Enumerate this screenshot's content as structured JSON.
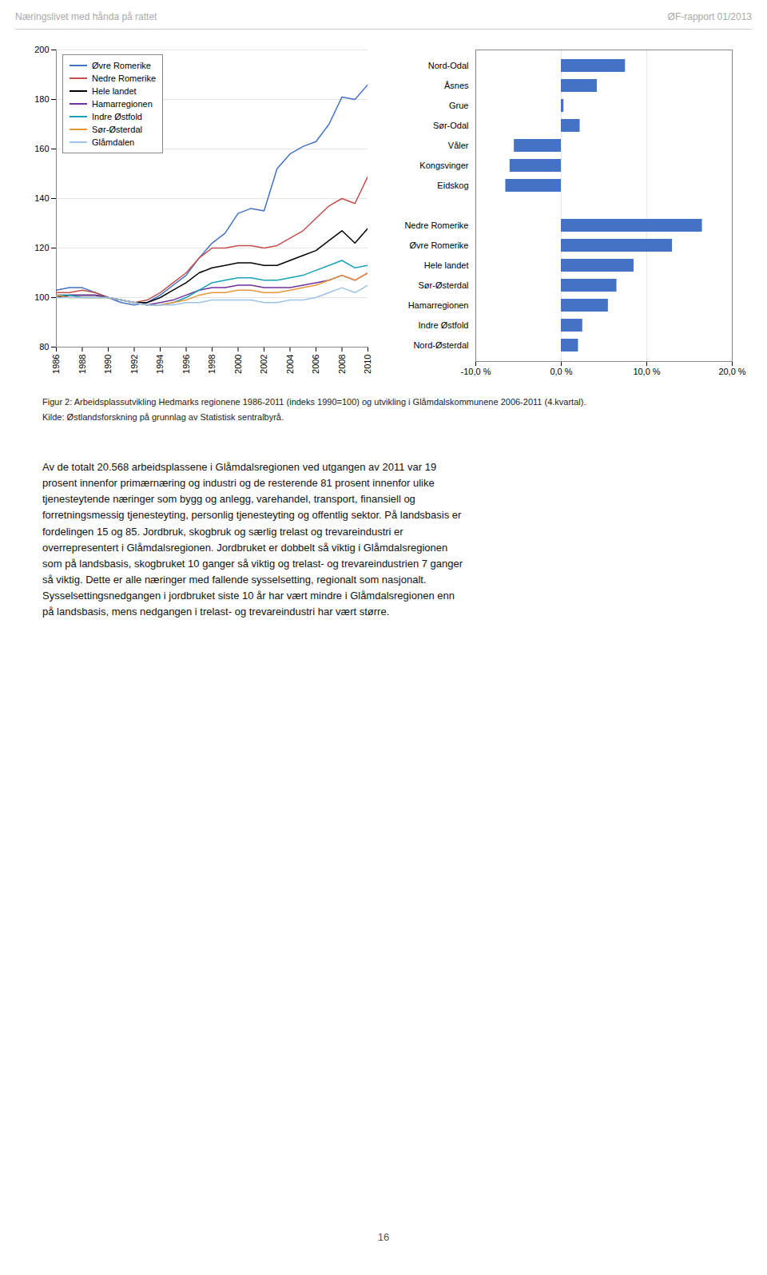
{
  "annotations": [
    "Næringslivet med hånda på rattet",
    "ØF-rapport 01/2013",
    "Figur 2: Arbeidsplassutvikling Hedmarks regionene 1986-2011 (indeks 1990=100) og utvikling i Glåmdalskommunene 2006-2011 (4.kvartal).",
    "Kilde: Østlandsforskning på grunnlag av Statistisk sentralbyrå.",
    "Av de totalt 20.568 arbeidsplassene i Glåmdalsregionen ved utgangen av 2011 var 19\nprosent innenfor primærnæring og industri og de resterende 81 prosent innenfor ulike\ntjenesteytende næringer som bygg og anlegg, varehandel, transport, finansiell og\nforretningsmessig tjenesteyting, personlig tjenesteyting og offentlig sektor. På landsbasis er\nfordelingen 15 og 85. Jordbruk, skogbruk og særlig trelast og trevareindustri er\noverrepresentert i Glåmdalsregionen. Jordbruket er dobbelt så viktig i Glåmdalsregionen\nsom på landsbasis, skogbruket 10 ganger så viktig og trelast- og trevareindustrien 7 ganger\nså viktig. Dette er alle næringer med fallende sysselsetting, regionalt som nasjonalt.\nSysselsettingsnedgangen i jordbruket siste 10 år har vært mindre i Glåmdalsregionen enn\npå landsbasis, mens nedgangen i trelast- og trevareindustri har vært større.",
    "16"
  ],
  "chart_data": [
    {
      "type": "line",
      "x": [
        1986,
        1987,
        1988,
        1989,
        1990,
        1991,
        1992,
        1993,
        1994,
        1995,
        1996,
        1997,
        1998,
        1999,
        2000,
        2001,
        2002,
        2003,
        2004,
        2005,
        2006,
        2007,
        2008,
        2009,
        2010
      ],
      "series": [
        {
          "name": "Øvre Romerike",
          "color": "#4472C4",
          "values": [
            103,
            104,
            104,
            102,
            100,
            98,
            97,
            98,
            101,
            105,
            109,
            116,
            122,
            126,
            134,
            136,
            135,
            152,
            158,
            161,
            163,
            170,
            181,
            180,
            186
          ]
        },
        {
          "name": "Nedre Romerike",
          "color": "#C0504D",
          "values": [
            102,
            102,
            103,
            102,
            100,
            99,
            98,
            99,
            102,
            106,
            110,
            116,
            120,
            120,
            121,
            121,
            120,
            121,
            124,
            127,
            132,
            137,
            140,
            138,
            149
          ]
        },
        {
          "name": "Hele landet",
          "color": "#000000",
          "values": [
            100,
            101,
            101,
            101,
            100,
            99,
            98,
            98,
            100,
            103,
            106,
            110,
            112,
            113,
            114,
            114,
            113,
            113,
            115,
            117,
            119,
            123,
            127,
            122,
            128
          ]
        },
        {
          "name": "Hamarregionen",
          "color": "#7030A0",
          "values": [
            101,
            101,
            101,
            101,
            100,
            99,
            98,
            97,
            98,
            99,
            101,
            103,
            104,
            104,
            105,
            105,
            104,
            104,
            104,
            105,
            106,
            107,
            109,
            107,
            110
          ]
        },
        {
          "name": "Indre Østfold",
          "color": "#17A2B8",
          "values": [
            101,
            101,
            100,
            100,
            100,
            99,
            98,
            97,
            97,
            98,
            100,
            103,
            106,
            107,
            108,
            108,
            107,
            107,
            108,
            109,
            111,
            113,
            115,
            112,
            113
          ]
        },
        {
          "name": "Sør-Østerdal",
          "color": "#E8963C",
          "values": [
            101,
            100,
            100,
            100,
            100,
            99,
            98,
            97,
            97,
            98,
            99,
            101,
            102,
            102,
            103,
            103,
            102,
            102,
            103,
            104,
            105,
            107,
            109,
            107,
            110
          ]
        },
        {
          "name": "Glåmdalen",
          "color": "#9DC3E6",
          "values": [
            100,
            100,
            100,
            100,
            100,
            99,
            98,
            97,
            97,
            97,
            98,
            98,
            99,
            99,
            99,
            99,
            98,
            98,
            99,
            99,
            100,
            102,
            104,
            102,
            105
          ]
        }
      ],
      "xlim": [
        1986,
        2010
      ],
      "xticks": [
        1986,
        1988,
        1990,
        1992,
        1994,
        1996,
        1998,
        2000,
        2002,
        2004,
        2006,
        2008,
        2010
      ],
      "ylim": [
        80,
        200
      ],
      "yticks": [
        80,
        100,
        120,
        140,
        160,
        180,
        200
      ],
      "grid": true,
      "legend": "upper left"
    },
    {
      "type": "bar",
      "orientation": "horizontal",
      "categories": [
        "Nord-Odal",
        "Åsnes",
        "Grue",
        "Sør-Odal",
        "Våler",
        "Kongsvinger",
        "Eidskog",
        null,
        "Nedre Romerike",
        "Øvre Romerike",
        "Hele landet",
        "Sør-Østerdal",
        "Hamarregionen",
        "Indre Østfold",
        "Nord-Østerdal"
      ],
      "values": [
        7.5,
        4.2,
        0.3,
        2.2,
        -5.5,
        -6.0,
        -6.5,
        null,
        16.5,
        13.0,
        8.5,
        6.5,
        5.5,
        2.5,
        2.0
      ],
      "color": "#4472C4",
      "xlim": [
        -10,
        20
      ],
      "xticks": [
        {
          "value": -10,
          "label": "-10,0 %"
        },
        {
          "value": 0,
          "label": "0,0 %"
        },
        {
          "value": 10,
          "label": "10,0 %"
        },
        {
          "value": 20,
          "label": "20,0 %"
        }
      ],
      "grid": true
    }
  ]
}
